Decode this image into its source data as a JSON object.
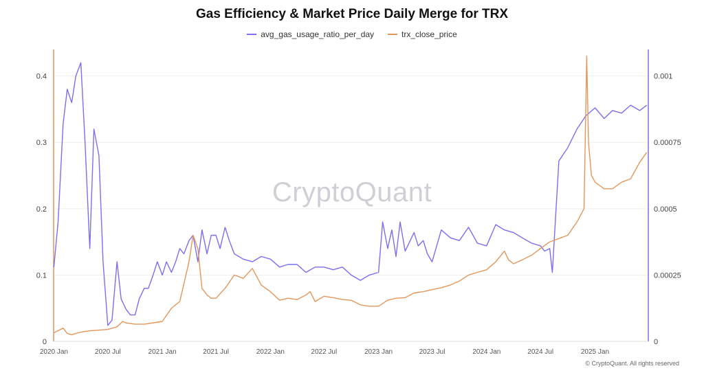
{
  "chart_data": {
    "type": "line",
    "title": "Gas Efficiency & Market Price Daily Merge for TRX",
    "legend_position": "top-center",
    "watermark": "CryptoQuant",
    "copyright": "© CryptoQuant. All rights reserved",
    "x_tick_labels": [
      "2020 Jan",
      "2020 Jul",
      "2021 Jan",
      "2021 Jul",
      "2022 Jan",
      "2022 Jul",
      "2023 Jan",
      "2023 Jul",
      "2024 Jan",
      "2024 Jul",
      "2025 Jan"
    ],
    "x_range": [
      "2019-12-31",
      "2025-06-30"
    ],
    "left_axis": {
      "ticks": [
        "0",
        "0.1",
        "0.2",
        "0.3",
        "0.4"
      ],
      "range": [
        0,
        0.44
      ]
    },
    "right_axis": {
      "ticks": [
        "0",
        "0.00025",
        "0.0005",
        "0.00075",
        "0.001"
      ],
      "range": [
        0,
        0.0011
      ]
    },
    "grid": true,
    "series": [
      {
        "name": "avg_gas_usage_ratio_per_day",
        "axis": "right",
        "color": "#7b6ef0",
        "x": [
          "2020-01-01",
          "2020-01-15",
          "2020-02-01",
          "2020-02-15",
          "2020-03-01",
          "2020-03-15",
          "2020-04-01",
          "2020-04-15",
          "2020-05-01",
          "2020-05-15",
          "2020-06-01",
          "2020-06-15",
          "2020-07-01",
          "2020-07-15",
          "2020-08-01",
          "2020-08-15",
          "2020-09-01",
          "2020-09-15",
          "2020-10-01",
          "2020-10-15",
          "2020-11-01",
          "2020-11-15",
          "2020-12-01",
          "2020-12-15",
          "2021-01-01",
          "2021-01-15",
          "2021-02-01",
          "2021-02-15",
          "2021-03-01",
          "2021-03-15",
          "2021-04-01",
          "2021-04-15",
          "2021-05-01",
          "2021-05-15",
          "2021-06-01",
          "2021-06-15",
          "2021-07-01",
          "2021-07-15",
          "2021-08-01",
          "2021-08-15",
          "2021-09-01",
          "2021-10-01",
          "2021-11-01",
          "2021-12-01",
          "2022-01-01",
          "2022-02-01",
          "2022-03-01",
          "2022-04-01",
          "2022-05-01",
          "2022-06-01",
          "2022-07-01",
          "2022-08-01",
          "2022-09-01",
          "2022-10-01",
          "2022-11-01",
          "2022-12-01",
          "2023-01-01",
          "2023-01-15",
          "2023-02-01",
          "2023-02-15",
          "2023-03-01",
          "2023-03-15",
          "2023-04-01",
          "2023-05-01",
          "2023-05-15",
          "2023-06-01",
          "2023-06-15",
          "2023-07-01",
          "2023-08-01",
          "2023-09-01",
          "2023-10-01",
          "2023-11-01",
          "2023-12-01",
          "2024-01-01",
          "2024-02-01",
          "2024-03-01",
          "2024-04-01",
          "2024-05-01",
          "2024-06-01",
          "2024-07-01",
          "2024-07-15",
          "2024-08-01",
          "2024-08-10",
          "2024-09-01",
          "2024-10-01",
          "2024-11-01",
          "2024-12-01",
          "2025-01-01",
          "2025-02-01",
          "2025-03-01",
          "2025-04-01",
          "2025-05-01",
          "2025-06-01",
          "2025-06-25"
        ],
        "values": [
          0.00028,
          0.00045,
          0.00082,
          0.00095,
          0.0009,
          0.001,
          0.00105,
          0.00075,
          0.00035,
          0.0008,
          0.0007,
          0.0003,
          6e-05,
          8e-05,
          0.0003,
          0.00016,
          0.00012,
          0.0001,
          0.0001,
          0.00016,
          0.0002,
          0.0002,
          0.00025,
          0.0003,
          0.00025,
          0.0003,
          0.00026,
          0.0003,
          0.00035,
          0.00033,
          0.00038,
          0.0004,
          0.0003,
          0.00042,
          0.00033,
          0.0004,
          0.0004,
          0.00035,
          0.00043,
          0.00038,
          0.00033,
          0.00031,
          0.0003,
          0.00032,
          0.00031,
          0.00028,
          0.00029,
          0.00029,
          0.00026,
          0.00028,
          0.00028,
          0.00027,
          0.00028,
          0.00025,
          0.00023,
          0.00025,
          0.00026,
          0.00045,
          0.00035,
          0.00042,
          0.00032,
          0.00045,
          0.00034,
          0.00041,
          0.00036,
          0.00038,
          0.00033,
          0.0003,
          0.00042,
          0.00039,
          0.00038,
          0.00043,
          0.00037,
          0.00036,
          0.00044,
          0.00042,
          0.00041,
          0.00039,
          0.00037,
          0.00036,
          0.00034,
          0.00035,
          0.00026,
          0.00068,
          0.00073,
          0.0008,
          0.00085,
          0.00088,
          0.00084,
          0.00087,
          0.00086,
          0.00089,
          0.00087,
          0.00089
        ]
      },
      {
        "name": "trx_close_price",
        "axis": "left",
        "color": "#e3965a",
        "x": [
          "2020-01-01",
          "2020-02-01",
          "2020-02-15",
          "2020-03-01",
          "2020-03-15",
          "2020-04-01",
          "2020-05-01",
          "2020-06-01",
          "2020-07-01",
          "2020-08-01",
          "2020-08-20",
          "2020-09-01",
          "2020-10-01",
          "2020-11-01",
          "2020-12-01",
          "2021-01-01",
          "2021-02-01",
          "2021-03-01",
          "2021-04-01",
          "2021-04-15",
          "2021-05-01",
          "2021-05-15",
          "2021-06-01",
          "2021-06-15",
          "2021-07-01",
          "2021-08-01",
          "2021-09-01",
          "2021-10-01",
          "2021-11-01",
          "2021-12-01",
          "2022-01-01",
          "2022-02-01",
          "2022-03-01",
          "2022-04-01",
          "2022-05-01",
          "2022-05-15",
          "2022-06-01",
          "2022-07-01",
          "2022-08-01",
          "2022-09-01",
          "2022-10-01",
          "2022-11-01",
          "2022-12-01",
          "2023-01-01",
          "2023-02-01",
          "2023-03-01",
          "2023-04-01",
          "2023-05-01",
          "2023-06-01",
          "2023-07-01",
          "2023-08-01",
          "2023-09-01",
          "2023-10-01",
          "2023-11-01",
          "2023-12-01",
          "2024-01-01",
          "2024-02-01",
          "2024-03-01",
          "2024-03-15",
          "2024-04-01",
          "2024-05-01",
          "2024-06-01",
          "2024-07-01",
          "2024-08-01",
          "2024-09-01",
          "2024-10-01",
          "2024-11-01",
          "2024-11-25",
          "2024-12-04",
          "2024-12-10",
          "2024-12-20",
          "2025-01-01",
          "2025-02-01",
          "2025-03-01",
          "2025-04-01",
          "2025-05-01",
          "2025-06-01",
          "2025-06-25"
        ],
        "values": [
          0.013,
          0.02,
          0.012,
          0.01,
          0.012,
          0.014,
          0.016,
          0.017,
          0.018,
          0.022,
          0.03,
          0.028,
          0.026,
          0.026,
          0.028,
          0.03,
          0.05,
          0.06,
          0.12,
          0.16,
          0.14,
          0.08,
          0.07,
          0.065,
          0.065,
          0.08,
          0.1,
          0.095,
          0.11,
          0.085,
          0.075,
          0.062,
          0.065,
          0.063,
          0.07,
          0.075,
          0.06,
          0.068,
          0.066,
          0.063,
          0.062,
          0.055,
          0.053,
          0.053,
          0.062,
          0.065,
          0.066,
          0.073,
          0.075,
          0.078,
          0.081,
          0.085,
          0.091,
          0.1,
          0.104,
          0.108,
          0.12,
          0.136,
          0.123,
          0.117,
          0.123,
          0.13,
          0.14,
          0.15,
          0.155,
          0.16,
          0.18,
          0.2,
          0.43,
          0.3,
          0.25,
          0.24,
          0.23,
          0.23,
          0.24,
          0.245,
          0.27,
          0.285
        ]
      }
    ]
  }
}
